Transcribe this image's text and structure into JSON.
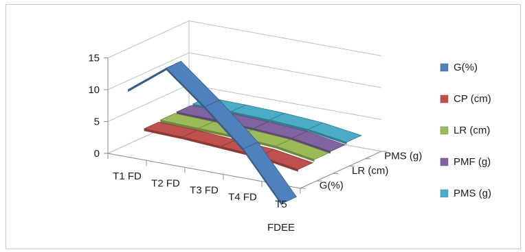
{
  "chart_data": {
    "type": "line",
    "variant": "3d",
    "title": "",
    "xlabel": "",
    "ylabel": "",
    "categories": [
      "T1 FD",
      "T2 FD",
      "T3 FD",
      "T4 FD",
      "T5 FDEE"
    ],
    "ylim": [
      0,
      15
    ],
    "yticks": [
      0,
      5,
      10,
      15
    ],
    "depth_ticks": [
      "G(%)",
      "LR (cm)",
      "PMS (g)"
    ],
    "grid": true,
    "legend_position": "right",
    "series": [
      {
        "name": "G(%)",
        "color": "#4f81bd",
        "values": [
          10.5,
          15,
          10,
          4.5,
          -3
        ]
      },
      {
        "name": "CP (cm)",
        "color": "#c0504d",
        "values": [
          3.2,
          3.0,
          2.6,
          2.2,
          1.2
        ]
      },
      {
        "name": "LR (cm)",
        "color": "#9bbb59",
        "values": [
          3.4,
          3.2,
          3.0,
          2.6,
          1.6
        ]
      },
      {
        "name": "PMF (g)",
        "color": "#8064a2",
        "values": [
          3.5,
          3.4,
          3.1,
          2.7,
          1.7
        ]
      },
      {
        "name": "PMS (g)",
        "color": "#4bacc6",
        "values": [
          3.6,
          3.5,
          3.3,
          2.9,
          2.0
        ]
      }
    ]
  }
}
